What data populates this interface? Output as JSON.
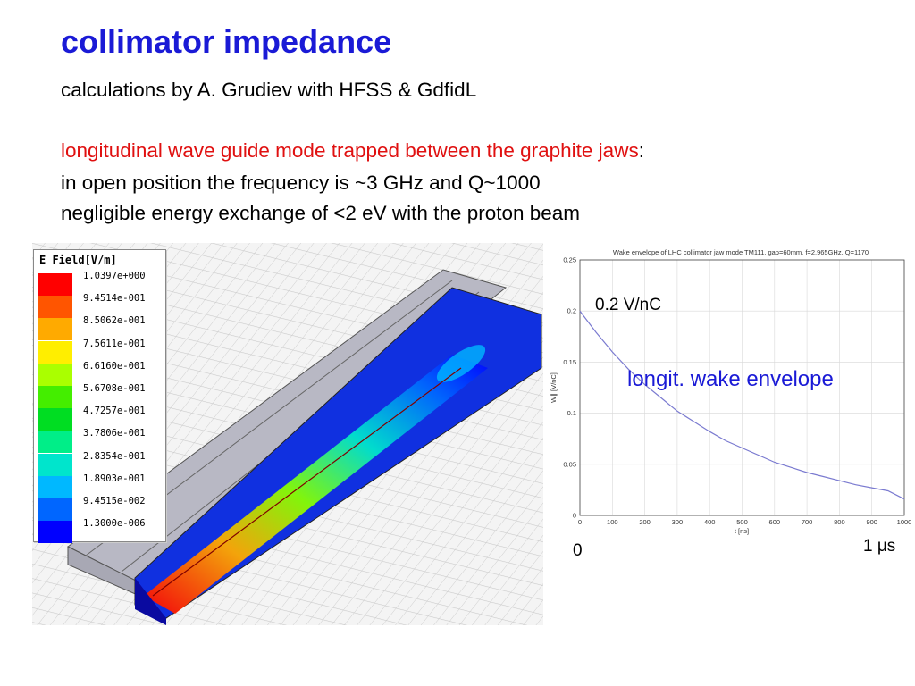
{
  "slide": {
    "title": "collimator impedance",
    "line1": "calculations by A. Grudiev with HFSS & GdfidL",
    "line2_red": "longitudinal wave guide mode trapped between the graphite jaws",
    "line2_colon": ":",
    "line3": "in open position the frequency is ~3 GHz and Q~1000",
    "line4": "negligible energy exchange of <2 eV with the proton beam"
  },
  "legend": {
    "title": "E Field[V/m]",
    "entries": [
      {
        "label": "1.0397e+000",
        "color": "#ff0000"
      },
      {
        "label": "9.4514e-001",
        "color": "#ff5500"
      },
      {
        "label": "8.5062e-001",
        "color": "#ffaa00"
      },
      {
        "label": "7.5611e-001",
        "color": "#ffee00"
      },
      {
        "label": "6.6160e-001",
        "color": "#aaff00"
      },
      {
        "label": "5.6708e-001",
        "color": "#44ee00"
      },
      {
        "label": "4.7257e-001",
        "color": "#00dd22"
      },
      {
        "label": "3.7806e-001",
        "color": "#00ee88"
      },
      {
        "label": "2.8354e-001",
        "color": "#00e5cc"
      },
      {
        "label": "1.8903e-001",
        "color": "#00b8ff"
      },
      {
        "label": "9.4515e-002",
        "color": "#0066ff"
      },
      {
        "label": "1.3000e-006",
        "color": "#0000ff"
      }
    ]
  },
  "chart_data": {
    "type": "line",
    "title": "Wake envelope of LHC collimator jaw mode TM111. gap=60mm, f=2.965GHz, Q=1170",
    "xlabel": "t [ns]",
    "ylabel": "W∥ [V/nC]",
    "xlim": [
      0,
      1000
    ],
    "ylim": [
      0,
      0.25
    ],
    "xticks": [
      "0",
      "100",
      "200",
      "300",
      "400",
      "500",
      "600",
      "700",
      "800",
      "900",
      "1000"
    ],
    "yticks": [
      "0",
      "0.05",
      "0.1",
      "0.15",
      "0.2",
      "0.25"
    ],
    "grid": true,
    "series": [
      {
        "color": "#7a7ad0",
        "x": [
          0,
          50,
          100,
          150,
          200,
          250,
          300,
          350,
          400,
          450,
          500,
          550,
          600,
          650,
          700,
          750,
          800,
          850,
          900,
          950,
          1000
        ],
        "values": [
          0.2,
          0.179,
          0.16,
          0.143,
          0.128,
          0.115,
          0.102,
          0.092,
          0.082,
          0.073,
          0.066,
          0.059,
          0.052,
          0.047,
          0.042,
          0.038,
          0.034,
          0.03,
          0.027,
          0.024,
          0.016
        ]
      }
    ]
  },
  "annotations": {
    "y_marker": "0.2 V/nC",
    "curve_label": "longit. wake envelope",
    "x_start": "0",
    "x_end": "1 μs"
  }
}
